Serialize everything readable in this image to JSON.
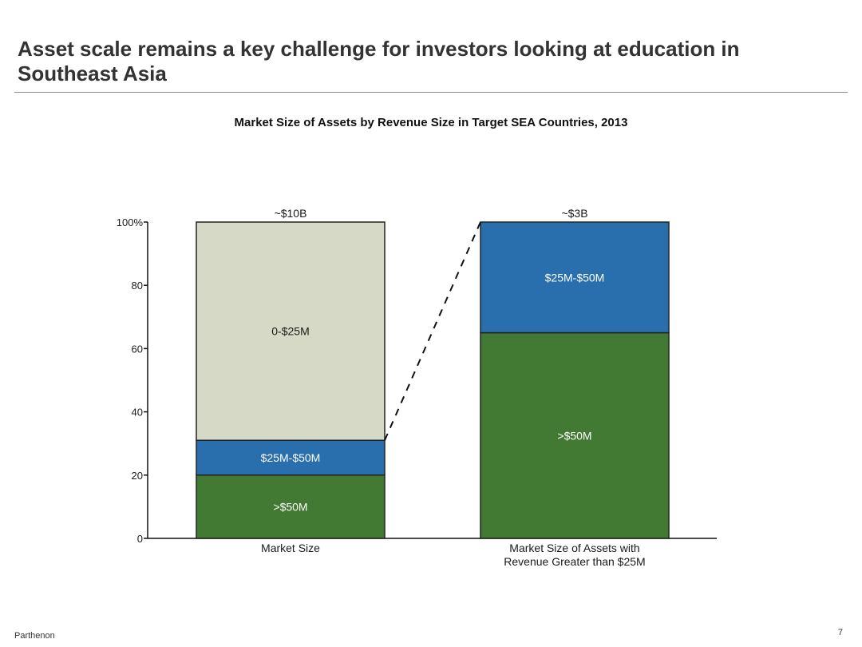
{
  "slide": {
    "title": "Asset scale remains a key challenge for investors looking at education in Southeast Asia",
    "footer_source": "Parthenon",
    "page_number": "7"
  },
  "chart_data": {
    "type": "bar",
    "stacked": true,
    "title": "Market Size of Assets by Revenue Size in Target SEA Countries, 2013",
    "y_tick_labels": [
      "0",
      "20",
      "40",
      "60",
      "80",
      "100%"
    ],
    "y_ticks": [
      0,
      20,
      40,
      60,
      80,
      100
    ],
    "ylim": [
      0,
      100
    ],
    "grid": false,
    "categories": [
      "Market Size",
      "Market Size of Assets with Revenue Greater than $25M"
    ],
    "totals": [
      "~$10B",
      "~$3B"
    ],
    "series": [
      {
        "name": ">$50M",
        "color": "#437a33",
        "label_color": "#ffffff",
        "values": [
          20,
          65
        ]
      },
      {
        "name": "$25M-$50M",
        "color": "#2a6fad",
        "label_color": "#ffffff",
        "values": [
          11,
          35
        ]
      },
      {
        "name": "0-$25M",
        "color": "#d5d9c5",
        "label_color": "#1a1a1a",
        "values": [
          69,
          0
        ]
      }
    ],
    "connector": "dashed line from top of $25M-$50M segment in bar 1 to top of bar 2"
  }
}
